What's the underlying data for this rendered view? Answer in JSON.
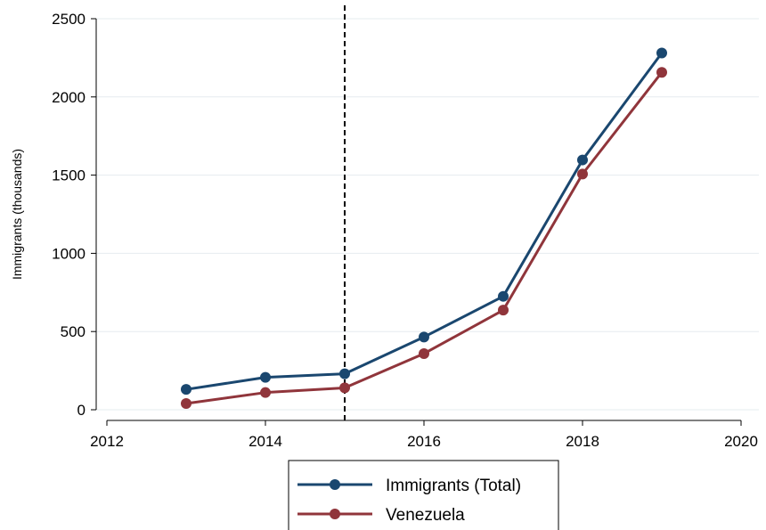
{
  "chart_data": {
    "type": "line",
    "title": "",
    "xlabel": "",
    "ylabel": "Immigrants (thousands)",
    "xlim": [
      2012,
      2020
    ],
    "ylim": [
      0,
      2500
    ],
    "xticks": [
      2012,
      2014,
      2016,
      2018,
      2020
    ],
    "yticks": [
      0,
      500,
      1000,
      1500,
      2000,
      2500
    ],
    "grid": "horizontal",
    "vertical_reference_line": {
      "x": 2015,
      "style": "dashed",
      "color": "#000000"
    },
    "legend_position": "bottom",
    "series": [
      {
        "name": "Immigrants (Total)",
        "color": "#1a476f",
        "x": [
          2013,
          2014,
          2015,
          2016,
          2017,
          2018,
          2019
        ],
        "values": [
          130,
          207,
          230,
          465,
          725,
          1597,
          2281
        ]
      },
      {
        "name": "Venezuela",
        "color": "#90353b",
        "x": [
          2013,
          2014,
          2015,
          2016,
          2017,
          2018,
          2019
        ],
        "values": [
          40,
          110,
          140,
          359,
          637,
          1507,
          2157
        ]
      }
    ]
  }
}
